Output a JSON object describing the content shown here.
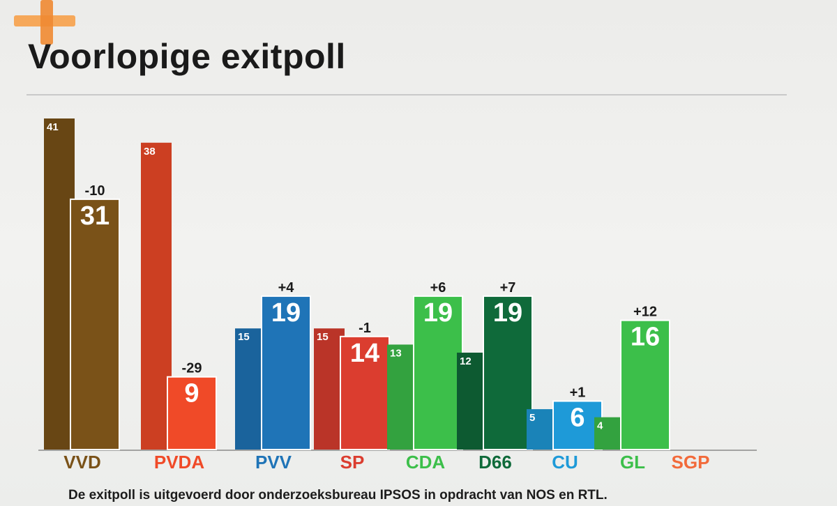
{
  "header": {
    "title": "Voorlopige exitpoll"
  },
  "footer": {
    "note": "De exitpoll is uitgevoerd door onderzoeksbureau IPSOS in opdracht van NOS en RTL."
  },
  "chart_data": {
    "type": "bar",
    "title": "Voorlopige exitpoll",
    "categories": [
      "VVD",
      "PVDA",
      "PVV",
      "SP",
      "CDA",
      "D66",
      "CU",
      "GL",
      "SGP"
    ],
    "series": [
      {
        "values": [
          41,
          38,
          15,
          15,
          13,
          12,
          5,
          4,
          null
        ]
      },
      {
        "values": [
          31,
          9,
          19,
          14,
          19,
          19,
          6,
          16,
          null
        ]
      }
    ],
    "change_labels": [
      "-10",
      "-29",
      "+4",
      "-1",
      "+6",
      "+7",
      "+1",
      "+12",
      ""
    ],
    "colors": {
      "VVD": "#7a5218",
      "PVDA": "#f04a28",
      "PVV": "#1f74b7",
      "SP": "#db3d2f",
      "CDA": "#3cbf4a",
      "D66": "#0f6a3a",
      "CU": "#1e9ad8",
      "GL": "#3cbf4a",
      "SGP": "#f26a3a"
    },
    "ylim": [
      0,
      41
    ],
    "grid": false
  }
}
